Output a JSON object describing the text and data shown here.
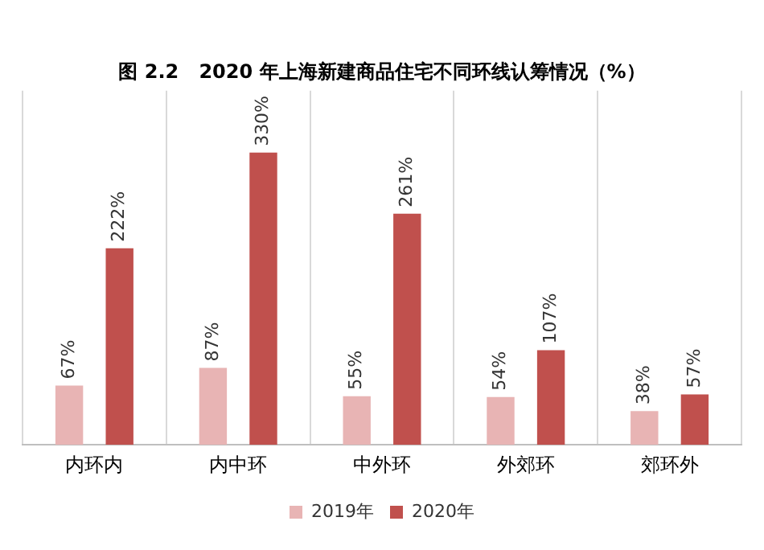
{
  "chart_data": {
    "type": "bar",
    "title": "图 2.2   2020 年上海新建商品住宅不同环线认筹情况（%）",
    "categories": [
      "内环内",
      "内中环",
      "中外环",
      "外郊环",
      "郊环外"
    ],
    "series": [
      {
        "name": "2019年",
        "color": "#e8b4b4",
        "values": [
          67,
          87,
          55,
          54,
          38
        ],
        "value_labels": [
          "67%",
          "87%",
          "55%",
          "54%",
          "38%"
        ]
      },
      {
        "name": "2020年",
        "color": "#c0504d",
        "values": [
          222,
          330,
          261,
          107,
          57
        ],
        "value_labels": [
          "222%",
          "330%",
          "261%",
          "107%",
          "57%"
        ]
      }
    ],
    "grid": "x",
    "legend": "bottom",
    "tick_labels": "x"
  }
}
